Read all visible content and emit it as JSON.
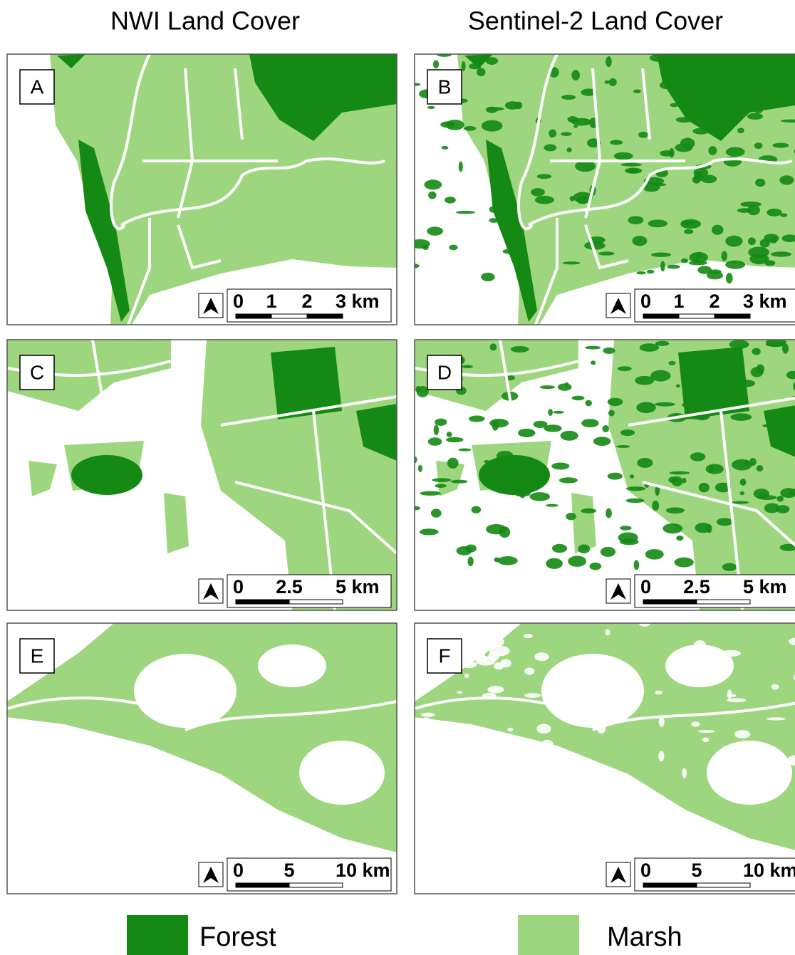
{
  "column_titles": [
    "NWI Land Cover",
    "Sentinel-2 Land Cover"
  ],
  "panels": [
    {
      "label": "A",
      "scale_labels": [
        "0",
        "1",
        "2",
        "3 km"
      ]
    },
    {
      "label": "B",
      "scale_labels": [
        "0",
        "1",
        "2",
        "3 km"
      ]
    },
    {
      "label": "C",
      "scale_labels": [
        "0",
        "2.5",
        "5 km"
      ]
    },
    {
      "label": "D",
      "scale_labels": [
        "0",
        "2.5",
        "5 km"
      ]
    },
    {
      "label": "E",
      "scale_labels": [
        "0",
        "5",
        "10 km"
      ]
    },
    {
      "label": "F",
      "scale_labels": [
        "0",
        "5",
        "10 km"
      ]
    }
  ],
  "legend": [
    {
      "label": "Forest",
      "color": "#148a14"
    },
    {
      "label": "Marsh",
      "color": "#9dd67f"
    }
  ]
}
